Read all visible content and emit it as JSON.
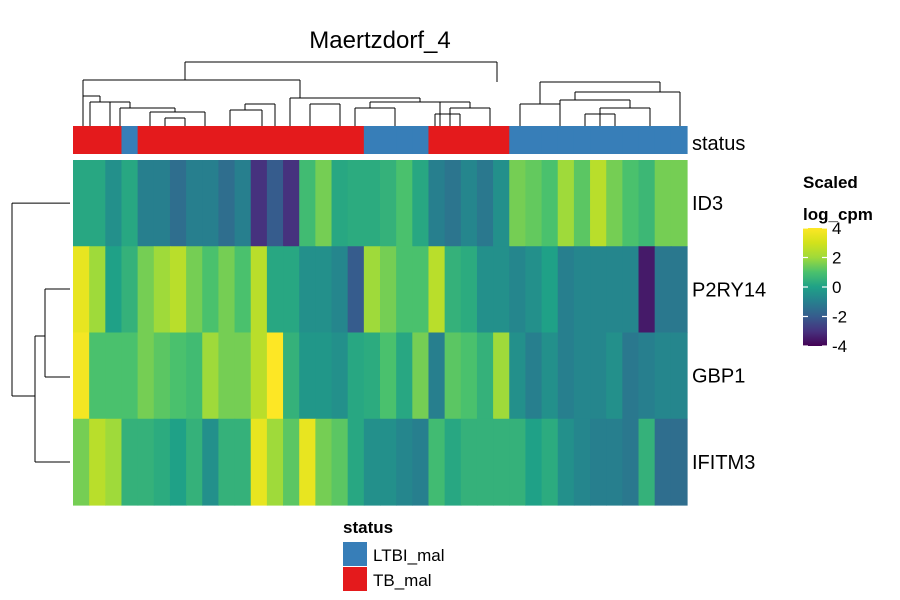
{
  "chart_data": {
    "type": "heatmap",
    "title": "Maertzdorf_4",
    "rows": [
      "ID3",
      "P2RY14",
      "GBP1",
      "IFITM3"
    ],
    "column_annotation": {
      "name": "status",
      "levels": [
        "LTBI_mal",
        "TB_mal"
      ],
      "colors": {
        "LTBI_mal": "#377EB8",
        "TB_mal": "#E41A1C"
      },
      "values": [
        "TB_mal",
        "TB_mal",
        "TB_mal",
        "LTBI_mal",
        "TB_mal",
        "TB_mal",
        "TB_mal",
        "TB_mal",
        "TB_mal",
        "TB_mal",
        "TB_mal",
        "TB_mal",
        "TB_mal",
        "TB_mal",
        "TB_mal",
        "TB_mal",
        "TB_mal",
        "TB_mal",
        "LTBI_mal",
        "LTBI_mal",
        "LTBI_mal",
        "LTBI_mal",
        "TB_mal",
        "TB_mal",
        "TB_mal",
        "TB_mal",
        "TB_mal",
        "LTBI_mal",
        "LTBI_mal",
        "LTBI_mal",
        "LTBI_mal",
        "LTBI_mal",
        "LTBI_mal",
        "LTBI_mal",
        "LTBI_mal",
        "LTBI_mal",
        "LTBI_mal",
        "LTBI_mal"
      ]
    },
    "values": [
      [
        0.2,
        0.2,
        -0.5,
        0.2,
        -1.0,
        -1.0,
        -1.5,
        -1.0,
        -1.0,
        -1.5,
        -1.0,
        -3.0,
        -2.0,
        -3.0,
        0.8,
        1.5,
        0.2,
        0.3,
        0.3,
        0.5,
        1.0,
        0.2,
        -1.0,
        -1.3,
        -0.8,
        -1.2,
        -0.5,
        1.5,
        1.3,
        1.0,
        2.0,
        1.2,
        2.5,
        1.5,
        1.0,
        0.7,
        1.5,
        1.5
      ],
      [
        3.5,
        2.0,
        0.0,
        0.5,
        1.5,
        2.0,
        2.5,
        1.5,
        1.0,
        1.5,
        1.0,
        2.5,
        0.2,
        0.2,
        -0.5,
        -0.5,
        -0.8,
        -2.0,
        2.0,
        1.5,
        1.0,
        1.0,
        2.5,
        0.5,
        0.3,
        -0.5,
        -0.5,
        -0.8,
        -0.5,
        0.0,
        -1.0,
        -0.8,
        -0.8,
        -0.8,
        -0.8,
        -3.5,
        -1.2,
        -1.2
      ],
      [
        3.8,
        1.0,
        1.0,
        1.0,
        1.5,
        1.2,
        1.0,
        0.8,
        2.0,
        1.5,
        1.5,
        2.5,
        4.0,
        0.5,
        -0.3,
        -0.3,
        -0.5,
        0.2,
        0.3,
        1.0,
        0.2,
        1.5,
        -1.0,
        1.2,
        1.0,
        0.5,
        2.0,
        -0.5,
        -1.0,
        -0.5,
        -1.0,
        -0.8,
        -0.8,
        -0.5,
        -1.2,
        -1.0,
        -0.8,
        -0.8
      ],
      [
        1.5,
        2.5,
        2.0,
        0.5,
        0.5,
        0.3,
        0.0,
        0.5,
        -0.5,
        0.5,
        0.5,
        3.5,
        2.0,
        1.2,
        3.5,
        1.5,
        1.2,
        0.2,
        -0.5,
        -0.5,
        -0.8,
        -1.0,
        0.8,
        0.2,
        0.5,
        0.5,
        0.5,
        0.5,
        0.0,
        0.3,
        -0.5,
        -0.8,
        -1.0,
        -1.0,
        -1.2,
        0.5,
        -1.5,
        -1.5
      ]
    ],
    "legend": {
      "title_line1": "Scaled",
      "title_line2": "log_cpm",
      "ticks": [
        4,
        2,
        0,
        -2,
        -4
      ],
      "range": [
        -4,
        4
      ]
    },
    "annotation_legend_title": "status"
  }
}
